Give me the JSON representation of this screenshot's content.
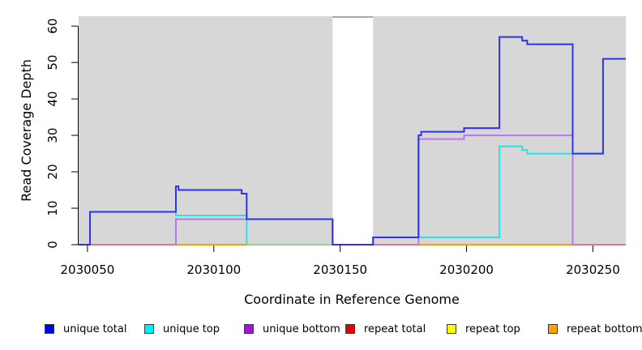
{
  "axes": {
    "x_title": "Coordinate in Reference Genome",
    "y_title": "Read Coverage Depth"
  },
  "chart_data": {
    "type": "line",
    "subtype": "step",
    "title": "",
    "xlabel": "Coordinate in Reference Genome",
    "ylabel": "Read Coverage Depth",
    "grid": false,
    "legend_position": "bottom",
    "plot_bg": "#d7d7d7",
    "xlim": [
      2030046.5,
      2030263
    ],
    "ylim": [
      0,
      62.7
    ],
    "x_ticks": [
      2030050,
      2030100,
      2030150,
      2030200,
      2030250
    ],
    "y_ticks": [
      0,
      10,
      20,
      30,
      40,
      50,
      60
    ],
    "masked_region": {
      "x0": 2030147,
      "x1": 2030163,
      "fill": "#ffffff",
      "top_edge_color": "#a8a8a8"
    },
    "series": [
      {
        "name": "unique total",
        "color": "#3030ee",
        "hide_zero_runs": false,
        "x_end": 2030263,
        "steps": [
          [
            2030046.5,
            0
          ],
          [
            2030051,
            9
          ],
          [
            2030085,
            16
          ],
          [
            2030086,
            15
          ],
          [
            2030111,
            14
          ],
          [
            2030113,
            7
          ],
          [
            2030147,
            0
          ],
          [
            2030163,
            2
          ],
          [
            2030181,
            30
          ],
          [
            2030182,
            31
          ],
          [
            2030199,
            32
          ],
          [
            2030213,
            57
          ],
          [
            2030222,
            56
          ],
          [
            2030224,
            55
          ],
          [
            2030242,
            25
          ],
          [
            2030254,
            51
          ]
        ]
      },
      {
        "name": "unique top",
        "color": "#2ee0e6",
        "hide_zero_runs": true,
        "x_end": 2030254,
        "steps": [
          [
            2030046.5,
            0
          ],
          [
            2030051,
            9
          ],
          [
            2030085,
            8
          ],
          [
            2030113,
            0
          ],
          [
            2030163,
            2
          ],
          [
            2030213,
            27
          ],
          [
            2030222,
            26
          ],
          [
            2030224,
            25
          ]
        ]
      },
      {
        "name": "unique bottom",
        "color": "#b878e8",
        "hide_zero_runs": true,
        "x_end": 2030242,
        "steps": [
          [
            2030046.5,
            0
          ],
          [
            2030085,
            7
          ],
          [
            2030147,
            0
          ],
          [
            2030181,
            29
          ],
          [
            2030199,
            30
          ],
          [
            2030242,
            0
          ]
        ]
      },
      {
        "name": "repeat total",
        "color": "#e80000",
        "hide_zero_runs": false,
        "x_end": 2030263,
        "steps": [
          [
            2030046.5,
            0
          ]
        ]
      },
      {
        "name": "repeat top",
        "color": "#fbfb00",
        "hide_zero_runs": false,
        "x_end": 2030263,
        "steps": [
          [
            2030046.5,
            0
          ]
        ]
      },
      {
        "name": "repeat bottom",
        "color": "#ffa000",
        "hide_zero_runs": false,
        "x_end": 2030263,
        "steps": [
          [
            2030046.5,
            0
          ]
        ]
      }
    ],
    "zero_overlap_segments": [
      {
        "x0": 2030051,
        "x1": 2030085,
        "color": "#e8729c"
      },
      {
        "x0": 2030085,
        "x1": 2030113,
        "color": "#ff9d00"
      },
      {
        "x0": 2030113,
        "x1": 2030147,
        "color": "#93d693"
      },
      {
        "x0": 2030163,
        "x1": 2030181,
        "color": "#e8729c"
      },
      {
        "x0": 2030181,
        "x1": 2030242,
        "color": "#ff9d00"
      },
      {
        "x0": 2030242,
        "x1": 2030263,
        "color": "#e8729c"
      }
    ]
  },
  "legend": {
    "items": [
      {
        "label": "unique total",
        "color": "#0000f0"
      },
      {
        "label": "unique top",
        "color": "#00eeee"
      },
      {
        "label": "unique bottom",
        "color": "#a214dc"
      },
      {
        "label": "repeat total",
        "color": "#e80000"
      },
      {
        "label": "repeat top",
        "color": "#fbfb00"
      },
      {
        "label": "repeat bottom",
        "color": "#ffa000"
      }
    ]
  }
}
